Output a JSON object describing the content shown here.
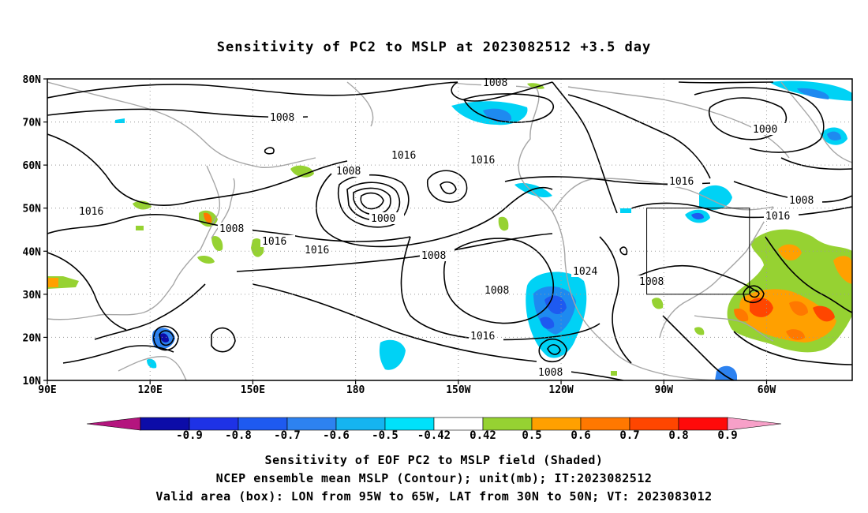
{
  "title": "Sensitivity of PC2 to MSLP at 2023082512 +3.5 day",
  "axes": {
    "lat_ticks": [
      "80N",
      "70N",
      "60N",
      "50N",
      "40N",
      "30N",
      "20N",
      "10N"
    ],
    "lon_ticks": [
      "90E",
      "120E",
      "150E",
      "180",
      "150W",
      "120W",
      "90W",
      "60W"
    ],
    "lon_range": [
      90,
      325
    ],
    "lat_range": [
      10,
      80
    ],
    "grid": true
  },
  "contour_labels": [
    "1008",
    "1008",
    "1000",
    "1016",
    "1016",
    "1008",
    "1000",
    "1016",
    "1008",
    "1016",
    "1016",
    "1008",
    "1016",
    "1016",
    "1008",
    "1024",
    "1008",
    "1008",
    "1016",
    "1008"
  ],
  "valid_box": {
    "lon": [
      265,
      295
    ],
    "lat": [
      30,
      50
    ]
  },
  "colorbar": {
    "labels": [
      "-0.9",
      "-0.8",
      "-0.7",
      "-0.6",
      "-0.5",
      "-0.42",
      "0.42",
      "0.5",
      "0.6",
      "0.7",
      "0.8",
      "0.9"
    ],
    "colors": [
      "#b4157e",
      "#0c0ca8",
      "#1e32e6",
      "#1e5af0",
      "#2d82f0",
      "#15b4f0",
      "#00e1fa",
      "#ffffff",
      "#96d232",
      "#ffa000",
      "#ff7800",
      "#ff4600",
      "#ff0a0a",
      "#f7a0c8"
    ]
  },
  "captions": [
    "Sensitivity of EOF PC2 to MSLP field (Shaded)",
    "NCEP ensemble mean MSLP (Contour); unit(mb); IT:2023082512",
    "Valid area (box): LON from 95W to 65W, LAT from 30N to 50N; VT: 2023083012"
  ]
}
